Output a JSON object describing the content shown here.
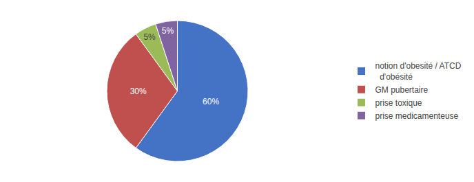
{
  "chart_data": {
    "type": "pie",
    "categories": [
      "notion d'obesité / ATCD\n  d'obésité",
      "GM pubertaire",
      "prise toxique",
      "prise medicamenteuse"
    ],
    "values": [
      60,
      30,
      5,
      5
    ],
    "value_labels": [
      "60%",
      "30%",
      "5%",
      "5%"
    ],
    "colors": [
      "#4472C4",
      "#C0504D",
      "#9BBB59",
      "#8064A2"
    ],
    "data_labels": true,
    "legend": "right"
  }
}
